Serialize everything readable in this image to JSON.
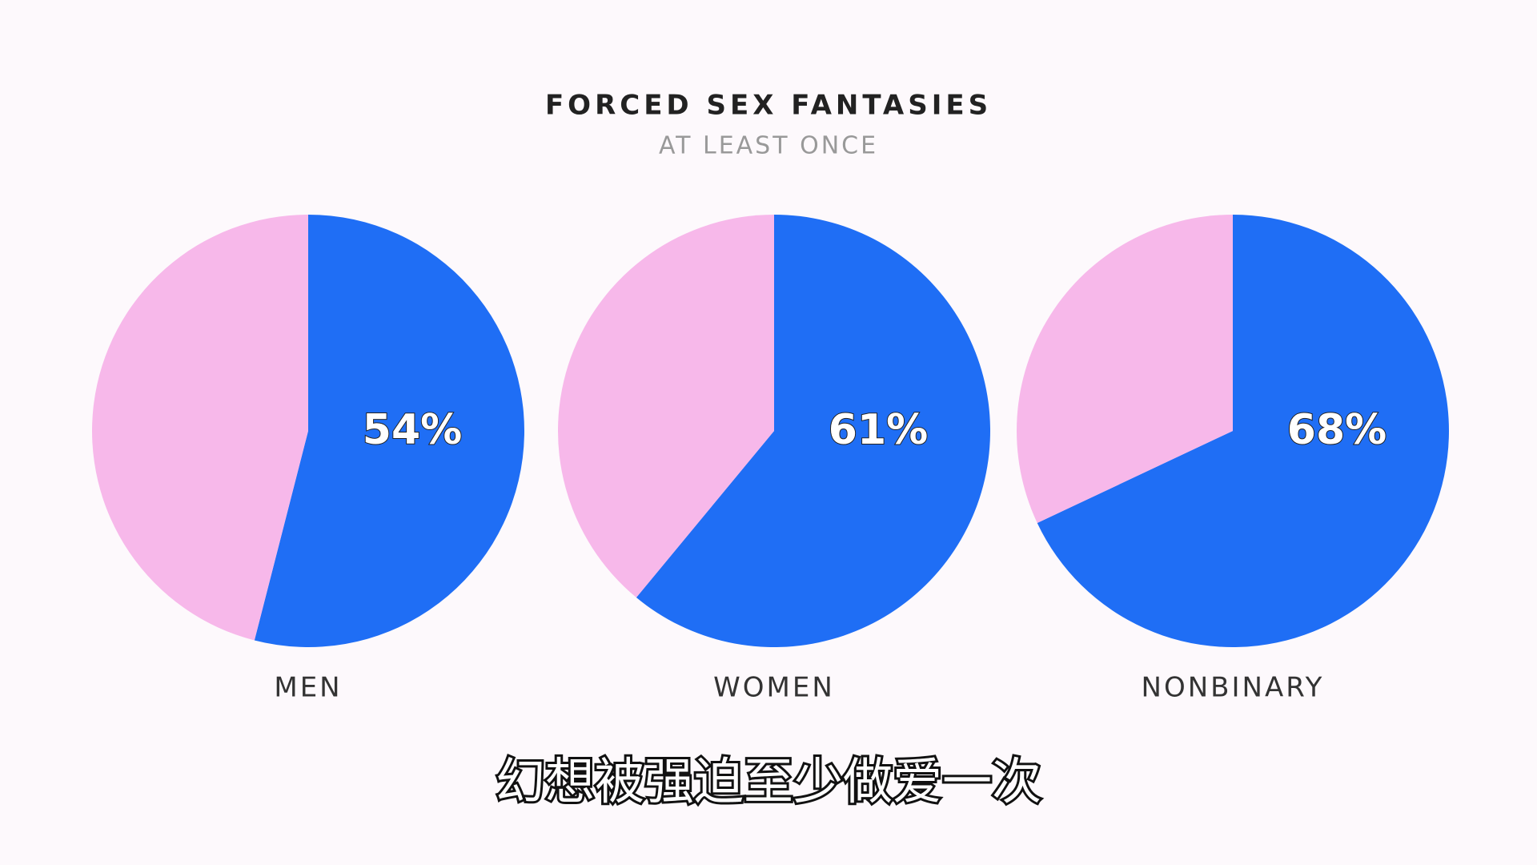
{
  "title": "FORCED SEX FANTASIES",
  "subtitle": "AT LEAST ONCE",
  "caption": "幻想被强迫至少做爱一次",
  "chart_data": [
    {
      "type": "pie",
      "label": "MEN",
      "values": [
        54,
        46
      ],
      "value_label": "54%",
      "colors": [
        "#1f6ef5",
        "#f7b8ea"
      ]
    },
    {
      "type": "pie",
      "label": "WOMEN",
      "values": [
        61,
        39
      ],
      "value_label": "61%",
      "colors": [
        "#1f6ef5",
        "#f7b8ea"
      ]
    },
    {
      "type": "pie",
      "label": "NONBINARY",
      "values": [
        68,
        32
      ],
      "value_label": "68%",
      "colors": [
        "#1f6ef5",
        "#f7b8ea"
      ]
    }
  ]
}
